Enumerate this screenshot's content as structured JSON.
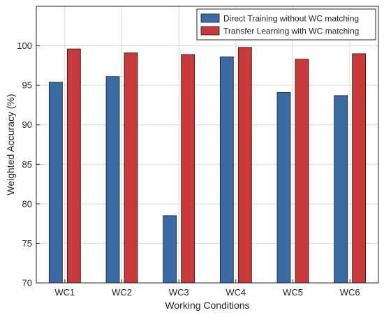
{
  "chart_data": {
    "type": "bar",
    "title": "",
    "xlabel": "Working Conditions",
    "ylabel": "Weighted Accuracy (%)",
    "categories": [
      "WC1",
      "WC2",
      "WC3",
      "WC4",
      "WC5",
      "WC6"
    ],
    "ylim": [
      70,
      105
    ],
    "yticks": [
      70,
      75,
      80,
      85,
      90,
      95,
      100
    ],
    "grid": true,
    "legend_position": "top-right",
    "series": [
      {
        "name": "Direct Training without WC matching",
        "color": "#3a6ba5",
        "values": [
          95.4,
          96.1,
          78.5,
          98.6,
          94.1,
          93.7
        ]
      },
      {
        "name": "Transfer Learning with WC matching",
        "color": "#c83a3a",
        "values": [
          99.6,
          99.1,
          98.9,
          99.8,
          98.3,
          99.0
        ]
      }
    ]
  }
}
